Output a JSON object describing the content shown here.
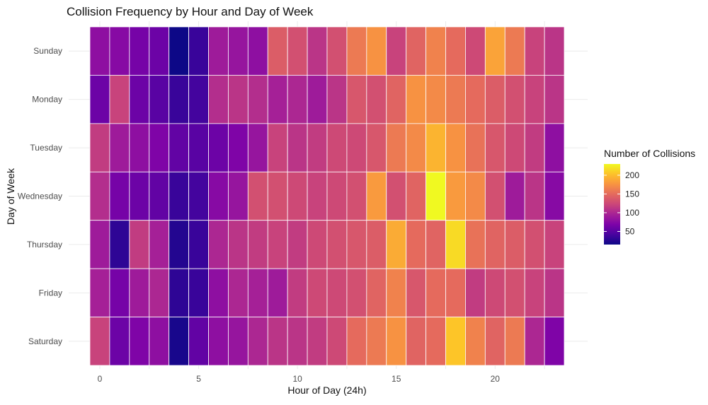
{
  "chart_data": {
    "type": "heatmap",
    "title": "Collision Frequency by Hour and Day of Week",
    "xlabel": "Hour of Day (24h)",
    "ylabel": "Day of Week",
    "x_ticks": [
      0,
      5,
      10,
      15,
      20
    ],
    "xlim": [
      -0.5,
      24.5
    ],
    "categories_x": [
      0,
      1,
      2,
      3,
      4,
      5,
      6,
      7,
      8,
      9,
      10,
      11,
      12,
      13,
      14,
      15,
      16,
      17,
      18,
      19,
      20,
      21,
      22,
      23
    ],
    "categories_y": [
      "Sunday",
      "Monday",
      "Tuesday",
      "Wednesday",
      "Thursday",
      "Friday",
      "Saturday"
    ],
    "values": [
      [
        80,
        75,
        65,
        60,
        15,
        35,
        90,
        85,
        80,
        140,
        130,
        110,
        130,
        160,
        175,
        120,
        145,
        165,
        150,
        125,
        185,
        160,
        120,
        110
      ],
      [
        60,
        120,
        60,
        50,
        35,
        40,
        105,
        110,
        105,
        95,
        100,
        90,
        110,
        135,
        130,
        145,
        175,
        170,
        160,
        150,
        140,
        130,
        120,
        110
      ],
      [
        115,
        90,
        80,
        70,
        55,
        50,
        60,
        70,
        85,
        120,
        110,
        115,
        125,
        125,
        135,
        160,
        170,
        195,
        175,
        155,
        135,
        125,
        115,
        80
      ],
      [
        105,
        65,
        60,
        55,
        35,
        40,
        75,
        85,
        130,
        130,
        125,
        120,
        125,
        130,
        180,
        130,
        145,
        230,
        180,
        170,
        130,
        90,
        110,
        75
      ],
      [
        90,
        30,
        115,
        95,
        25,
        35,
        100,
        110,
        115,
        120,
        115,
        125,
        130,
        135,
        140,
        190,
        150,
        145,
        215,
        155,
        145,
        140,
        130,
        120
      ],
      [
        95,
        65,
        90,
        100,
        30,
        35,
        80,
        100,
        95,
        90,
        115,
        125,
        125,
        130,
        145,
        165,
        135,
        150,
        150,
        115,
        125,
        130,
        120,
        110
      ],
      [
        120,
        60,
        70,
        80,
        20,
        55,
        80,
        85,
        100,
        110,
        110,
        115,
        125,
        150,
        160,
        175,
        145,
        150,
        205,
        165,
        145,
        160,
        100,
        70
      ]
    ],
    "legend": {
      "title": "Number of Collisions",
      "ticks": [
        50,
        100,
        150,
        200
      ],
      "range": [
        15,
        230
      ],
      "position": "right"
    },
    "colormap": "plasma",
    "grid": true
  }
}
